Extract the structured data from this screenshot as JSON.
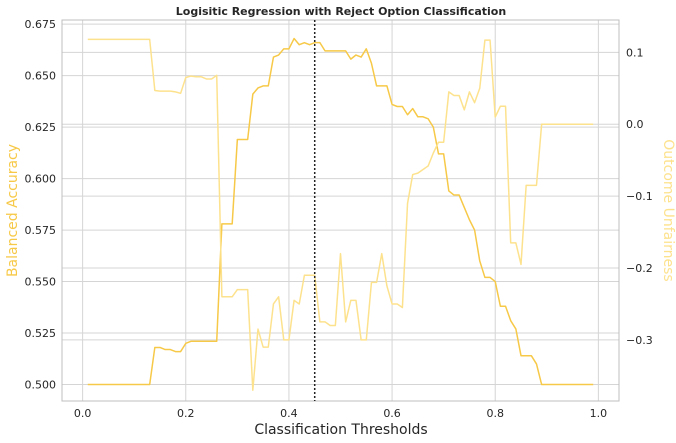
{
  "chart_data": {
    "type": "line",
    "title": "Logisitic Regression with Reject Option Classification",
    "xlabel": "Classification Thresholds",
    "ylabel_left": "Balanced Accuracy",
    "ylabel_right": "Outcome Unfairness",
    "xlim": [
      -0.04,
      1.04
    ],
    "ylim_left": [
      0.492,
      0.677
    ],
    "ylim_right": [
      -0.385,
      0.145
    ],
    "x_ticks": [
      "0.0",
      "0.2",
      "0.4",
      "0.6",
      "0.8",
      "1.0"
    ],
    "x_tick_values": [
      0.0,
      0.2,
      0.4,
      0.6,
      0.8,
      1.0
    ],
    "y_left_ticks": [
      "0.500",
      "0.525",
      "0.550",
      "0.575",
      "0.600",
      "0.625",
      "0.650",
      "0.675"
    ],
    "y_left_tick_values": [
      0.5,
      0.525,
      0.55,
      0.575,
      0.6,
      0.625,
      0.65,
      0.675
    ],
    "y_right_ticks": [
      "−0.3",
      "−0.2",
      "−0.1",
      "0.0",
      "0.1"
    ],
    "y_right_tick_values": [
      -0.3,
      -0.2,
      -0.1,
      0.0,
      0.1
    ],
    "grid": true,
    "best_threshold": 0.45,
    "colors": {
      "accuracy": "#f7c948",
      "unfairness": "#fde28e",
      "best_line": "#222222",
      "grid": "#d5d5d5",
      "axis_edge": "#bfbfbf"
    },
    "series": [
      {
        "axis": "left",
        "x": [
          0.01,
          0.13,
          0.14,
          0.15,
          0.16,
          0.17,
          0.18,
          0.19,
          0.2,
          0.21,
          0.22,
          0.23,
          0.24,
          0.25,
          0.26,
          0.27,
          0.28,
          0.29,
          0.3,
          0.31,
          0.32,
          0.33,
          0.34,
          0.35,
          0.36,
          0.37,
          0.38,
          0.39,
          0.4,
          0.41,
          0.42,
          0.43,
          0.44,
          0.45,
          0.46,
          0.47,
          0.48,
          0.49,
          0.5,
          0.51,
          0.52,
          0.53,
          0.54,
          0.55,
          0.56,
          0.57,
          0.58,
          0.59,
          0.6,
          0.61,
          0.62,
          0.63,
          0.64,
          0.65,
          0.66,
          0.67,
          0.68,
          0.69,
          0.7,
          0.71,
          0.72,
          0.73,
          0.74,
          0.75,
          0.76,
          0.77,
          0.78,
          0.79,
          0.8,
          0.81,
          0.82,
          0.83,
          0.84,
          0.85,
          0.86,
          0.87,
          0.88,
          0.89,
          0.9,
          0.99
        ],
        "y": [
          0.5,
          0.5,
          0.518,
          0.518,
          0.517,
          0.517,
          0.516,
          0.516,
          0.52,
          0.521,
          0.521,
          0.521,
          0.521,
          0.521,
          0.521,
          0.578,
          0.578,
          0.578,
          0.619,
          0.619,
          0.619,
          0.641,
          0.644,
          0.645,
          0.645,
          0.659,
          0.66,
          0.663,
          0.663,
          0.668,
          0.665,
          0.666,
          0.665,
          0.666,
          0.666,
          0.662,
          0.662,
          0.662,
          0.662,
          0.662,
          0.658,
          0.66,
          0.659,
          0.663,
          0.656,
          0.645,
          0.645,
          0.645,
          0.636,
          0.635,
          0.635,
          0.631,
          0.634,
          0.63,
          0.63,
          0.629,
          0.625,
          0.612,
          0.612,
          0.594,
          0.592,
          0.592,
          0.586,
          0.58,
          0.575,
          0.56,
          0.552,
          0.552,
          0.55,
          0.538,
          0.538,
          0.531,
          0.527,
          0.514,
          0.514,
          0.514,
          0.51,
          0.5,
          0.5,
          0.5
        ]
      },
      {
        "axis": "right",
        "x": [
          0.01,
          0.13,
          0.14,
          0.15,
          0.16,
          0.17,
          0.18,
          0.19,
          0.2,
          0.21,
          0.22,
          0.23,
          0.24,
          0.25,
          0.26,
          0.27,
          0.28,
          0.29,
          0.3,
          0.31,
          0.32,
          0.33,
          0.34,
          0.35,
          0.36,
          0.37,
          0.38,
          0.39,
          0.4,
          0.41,
          0.42,
          0.43,
          0.44,
          0.45,
          0.46,
          0.47,
          0.48,
          0.49,
          0.5,
          0.51,
          0.52,
          0.53,
          0.54,
          0.55,
          0.56,
          0.57,
          0.58,
          0.59,
          0.6,
          0.61,
          0.62,
          0.63,
          0.64,
          0.65,
          0.66,
          0.67,
          0.68,
          0.69,
          0.7,
          0.71,
          0.72,
          0.73,
          0.74,
          0.75,
          0.76,
          0.77,
          0.78,
          0.79,
          0.8,
          0.81,
          0.82,
          0.83,
          0.84,
          0.85,
          0.86,
          0.87,
          0.88,
          0.89,
          0.9,
          0.99
        ],
        "y": [
          0.118,
          0.118,
          0.047,
          0.046,
          0.046,
          0.046,
          0.045,
          0.043,
          0.065,
          0.067,
          0.066,
          0.066,
          0.063,
          0.063,
          0.068,
          -0.24,
          -0.24,
          -0.24,
          -0.23,
          -0.23,
          -0.23,
          -0.37,
          -0.285,
          -0.31,
          -0.31,
          -0.25,
          -0.24,
          -0.3,
          -0.3,
          -0.245,
          -0.25,
          -0.21,
          -0.21,
          -0.21,
          -0.275,
          -0.275,
          -0.28,
          -0.28,
          -0.18,
          -0.275,
          -0.245,
          -0.245,
          -0.3,
          -0.3,
          -0.22,
          -0.22,
          -0.18,
          -0.225,
          -0.25,
          -0.25,
          -0.255,
          -0.11,
          -0.07,
          -0.068,
          -0.063,
          -0.058,
          -0.04,
          -0.025,
          -0.025,
          0.045,
          0.04,
          0.04,
          0.02,
          0.045,
          0.03,
          0.05,
          0.117,
          0.117,
          0.01,
          0.025,
          0.025,
          -0.165,
          -0.165,
          -0.195,
          -0.085,
          -0.085,
          -0.085,
          0.0,
          0.0,
          0.0
        ]
      }
    ]
  }
}
